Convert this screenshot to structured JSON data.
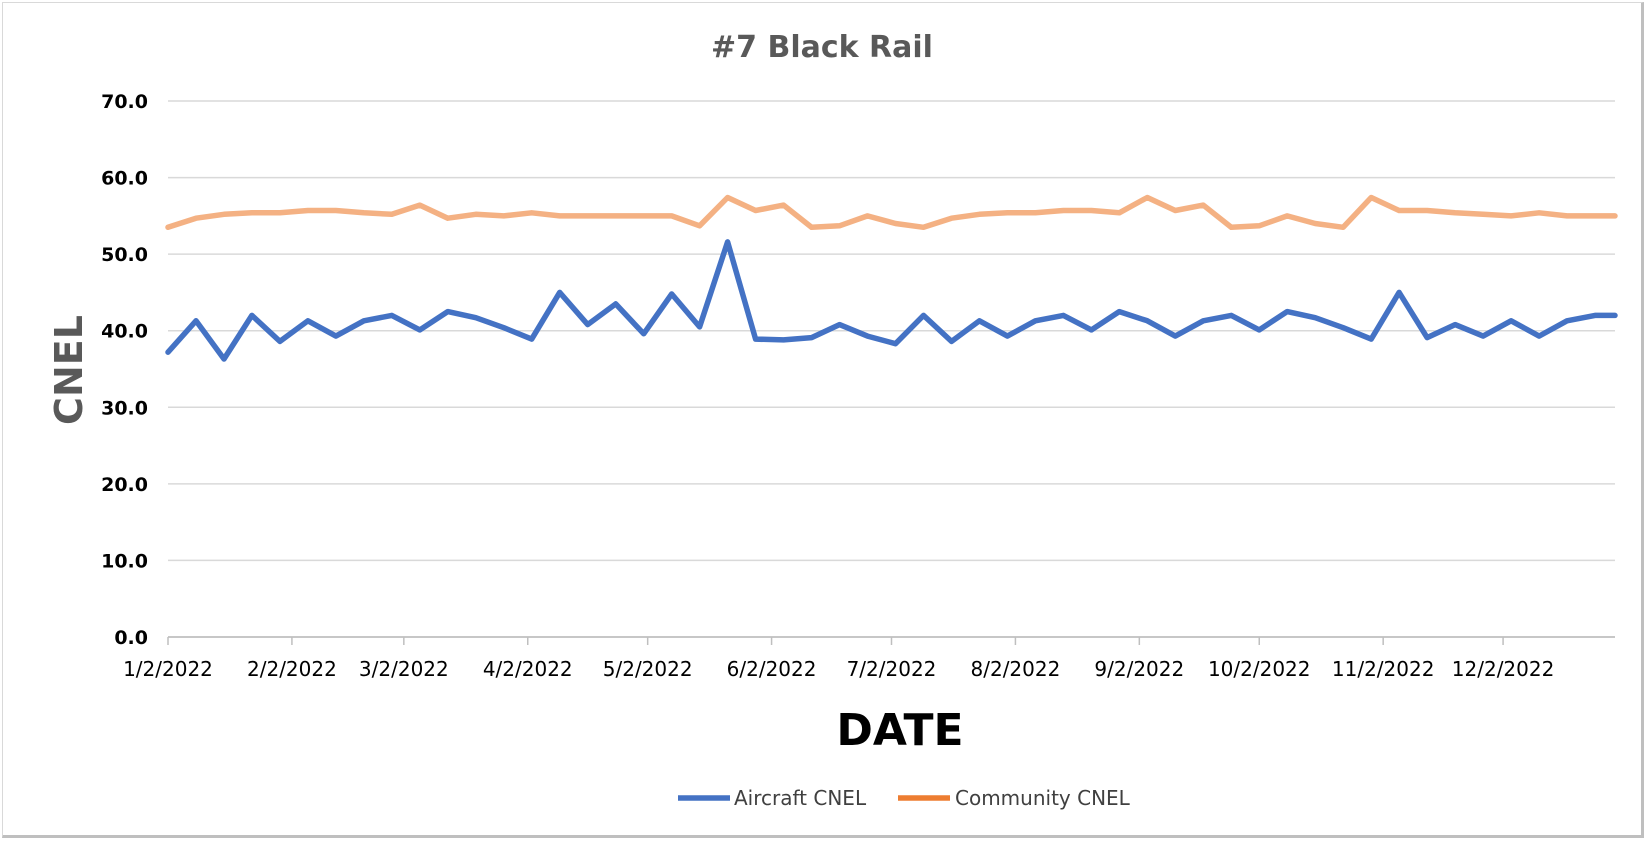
{
  "chart_data": {
    "type": "line",
    "title": "#7 Black Rail",
    "xlabel": "DATE",
    "ylabel": "CNEL",
    "ylim": [
      0,
      70
    ],
    "yticks": [
      "0.0",
      "10.0",
      "20.0",
      "30.0",
      "40.0",
      "50.0",
      "60.0",
      "70.0"
    ],
    "xlim": [
      "2022-01-02",
      "2022-12-30"
    ],
    "xtick_dates": [
      "2022-01-02",
      "2022-02-02",
      "2022-03-02",
      "2022-04-02",
      "2022-05-02",
      "2022-06-02",
      "2022-07-02",
      "2022-08-02",
      "2022-09-02",
      "2022-10-02",
      "2022-11-02",
      "2022-12-02"
    ],
    "xtick_labels": [
      "1/2/2022",
      "2/2/2022",
      "3/2/2022",
      "4/2/2022",
      "5/2/2022",
      "6/2/2022",
      "7/2/2022",
      "8/2/2022",
      "9/2/2022",
      "10/2/2022",
      "11/2/2022",
      "12/2/2022"
    ],
    "grid": true,
    "legend_position": "bottom",
    "x": [
      "2022-01-02",
      "2022-01-09",
      "2022-01-16",
      "2022-01-23",
      "2022-01-30",
      "2022-02-06",
      "2022-02-13",
      "2022-02-20",
      "2022-02-27",
      "2022-03-06",
      "2022-03-13",
      "2022-03-20",
      "2022-03-27",
      "2022-04-03",
      "2022-04-10",
      "2022-04-17",
      "2022-04-24",
      "2022-05-01",
      "2022-05-08",
      "2022-05-15",
      "2022-05-22",
      "2022-05-29",
      "2022-06-05",
      "2022-06-12",
      "2022-06-19",
      "2022-06-26",
      "2022-07-03",
      "2022-07-10",
      "2022-07-17",
      "2022-07-24",
      "2022-07-31",
      "2022-08-07",
      "2022-08-14",
      "2022-08-21",
      "2022-08-28",
      "2022-09-04",
      "2022-09-11",
      "2022-09-18",
      "2022-09-25",
      "2022-10-02",
      "2022-10-09",
      "2022-10-16",
      "2022-10-23",
      "2022-10-30",
      "2022-11-06",
      "2022-11-13",
      "2022-11-20",
      "2022-11-27",
      "2022-12-04",
      "2022-12-11",
      "2022-12-18",
      "2022-12-25",
      "2022-12-30"
    ],
    "series": [
      {
        "name": "Aircraft CNEL",
        "color": "#4472C4",
        "values": [
          37.2,
          41.3,
          36.3,
          42.0,
          38.6,
          41.3,
          39.3,
          41.3,
          42.0,
          40.1,
          42.5,
          41.7,
          40.4,
          38.9,
          45.0,
          40.8,
          43.5,
          39.6,
          44.8,
          40.5,
          51.6,
          38.9,
          38.8,
          39.1,
          40.8,
          39.3,
          38.3,
          42.0,
          38.6,
          41.3,
          39.3,
          41.3,
          42.0,
          40.1,
          42.5,
          41.3,
          39.3,
          41.3,
          42.0,
          40.1,
          42.5,
          41.7,
          40.4,
          38.9,
          45.0,
          39.1,
          40.8,
          39.3,
          41.3,
          39.3,
          41.3,
          42.0,
          42.0
        ]
      },
      {
        "name": "Community CNEL",
        "color": "#ED7D31",
        "values": [
          53.5,
          54.7,
          55.2,
          55.4,
          55.4,
          55.7,
          55.7,
          55.4,
          55.2,
          56.4,
          54.7,
          55.2,
          55.0,
          55.4,
          55.0,
          55.0,
          55.0,
          55.0,
          55.0,
          53.7,
          57.4,
          55.7,
          56.4,
          53.5,
          53.7,
          55.0,
          54.0,
          53.5,
          54.7,
          55.2,
          55.4,
          55.4,
          55.7,
          55.7,
          55.4,
          57.4,
          55.7,
          56.4,
          53.5,
          53.7,
          55.0,
          54.0,
          53.5,
          57.4,
          55.7,
          55.7,
          55.4,
          55.2,
          55.0,
          55.4,
          55.0,
          55.0,
          55.0
        ]
      }
    ]
  }
}
